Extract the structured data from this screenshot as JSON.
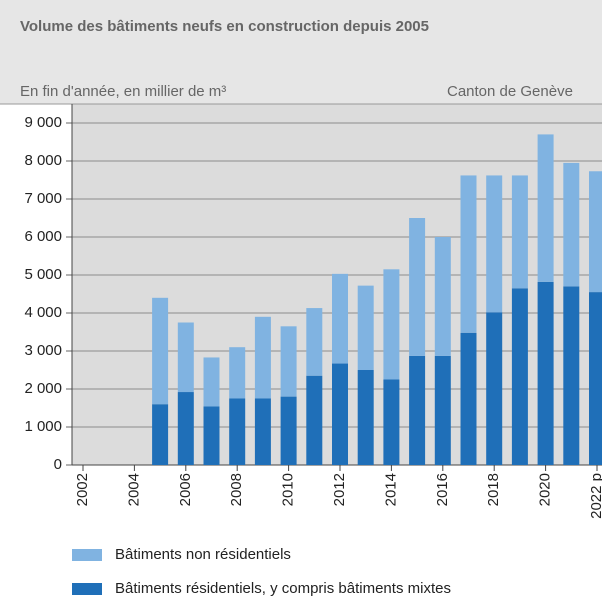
{
  "chart_data": {
    "type": "stacked_bar",
    "title": "Volume des bâtiments neufs en construction depuis 2005",
    "subtitle": "En fin d'année, en millier de m³",
    "source_note": "Canton de Genève",
    "categories": [
      "2002",
      null,
      "2004",
      null,
      "2006",
      null,
      "2008",
      null,
      "2010",
      null,
      "2012",
      null,
      "2014",
      null,
      "2016",
      null,
      "2018",
      null,
      "2020",
      null,
      "2022 p"
    ],
    "series": [
      {
        "name": "Bâtiments non résidentiels",
        "color": "#80b3e1",
        "values": [
          null,
          null,
          null,
          2800,
          1830,
          1290,
          1350,
          2150,
          1850,
          1780,
          2360,
          2220,
          2900,
          3630,
          3130,
          4140,
          3600,
          2970,
          3880,
          3250,
          3180
        ]
      },
      {
        "name": "Bâtiments résidentiels, y compris bâtiments mixtes",
        "color": "#1f6fb8",
        "values": [
          null,
          null,
          null,
          1600,
          1920,
          1540,
          1750,
          1750,
          1800,
          2350,
          2670,
          2500,
          2250,
          2870,
          2870,
          3480,
          4020,
          4650,
          4820,
          4700,
          4550
        ]
      }
    ],
    "ylim": [
      0,
      9000
    ],
    "yticks": [
      0,
      {
        "value": 1000,
        "label": "1 000"
      },
      {
        "value": 2000,
        "label": "2 000"
      },
      {
        "value": 3000,
        "label": "3 000"
      },
      {
        "value": 4000,
        "label": "4 000"
      },
      {
        "value": 5000,
        "label": "5 000"
      },
      {
        "value": 6000,
        "label": "6 000"
      },
      {
        "value": 7000,
        "label": "7 000"
      },
      {
        "value": 8000,
        "label": "8 000"
      },
      {
        "value": 9000,
        "label": "9 000"
      }
    ],
    "grid": true
  }
}
